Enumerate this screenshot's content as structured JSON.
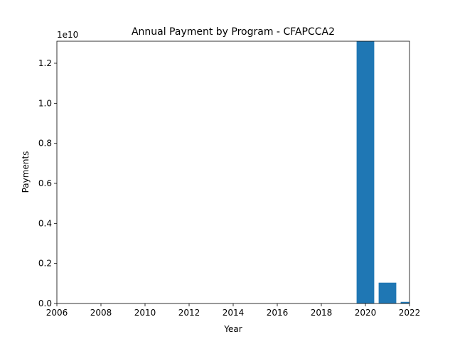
{
  "chart_data": {
    "type": "bar",
    "title": "Annual Payment by Program - CFAPCCA2",
    "xlabel": "Year",
    "ylabel": "Payments",
    "y_offset_label": "1e10",
    "x": [
      2020,
      2021,
      2022
    ],
    "values": [
      13100000000,
      1040000000,
      80000000
    ],
    "xlim": [
      2006,
      2022
    ],
    "ylim": [
      0,
      13100000000
    ],
    "xticks": [
      2006,
      2008,
      2010,
      2012,
      2014,
      2016,
      2018,
      2020,
      2022
    ],
    "xtick_labels": [
      "2006",
      "2008",
      "2010",
      "2012",
      "2014",
      "2016",
      "2018",
      "2020",
      "2022"
    ],
    "yticks": [
      0,
      2000000000,
      4000000000,
      6000000000,
      8000000000,
      10000000000,
      12000000000
    ],
    "ytick_labels": [
      "0.0",
      "0.2",
      "0.4",
      "0.6",
      "0.8",
      "1.0",
      "1.2"
    ],
    "bar_width": 0.8,
    "grid": false,
    "bar_color": "#1f77b4"
  }
}
